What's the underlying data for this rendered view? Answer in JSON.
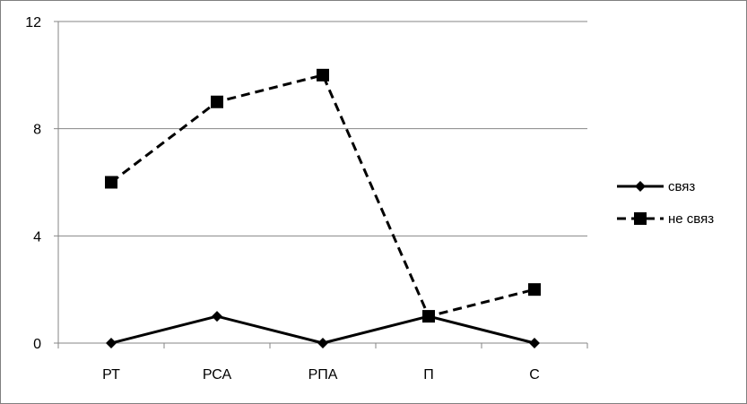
{
  "chart_data": {
    "type": "line",
    "categories": [
      "РТ",
      "РСА",
      "РПА",
      "П",
      "С"
    ],
    "series": [
      {
        "name": "связ",
        "values": [
          0,
          1,
          0,
          1,
          0
        ],
        "marker": "diamond",
        "dash": "solid",
        "color": "#000000"
      },
      {
        "name": "не связ",
        "values": [
          6,
          9,
          10,
          1,
          2
        ],
        "marker": "square",
        "dash": "dashed",
        "color": "#000000"
      }
    ],
    "yticks": [
      0,
      4,
      8,
      12
    ],
    "ylim": [
      0,
      12
    ],
    "grid": true,
    "legend": "right",
    "title": "",
    "xlabel": "",
    "ylabel": ""
  }
}
